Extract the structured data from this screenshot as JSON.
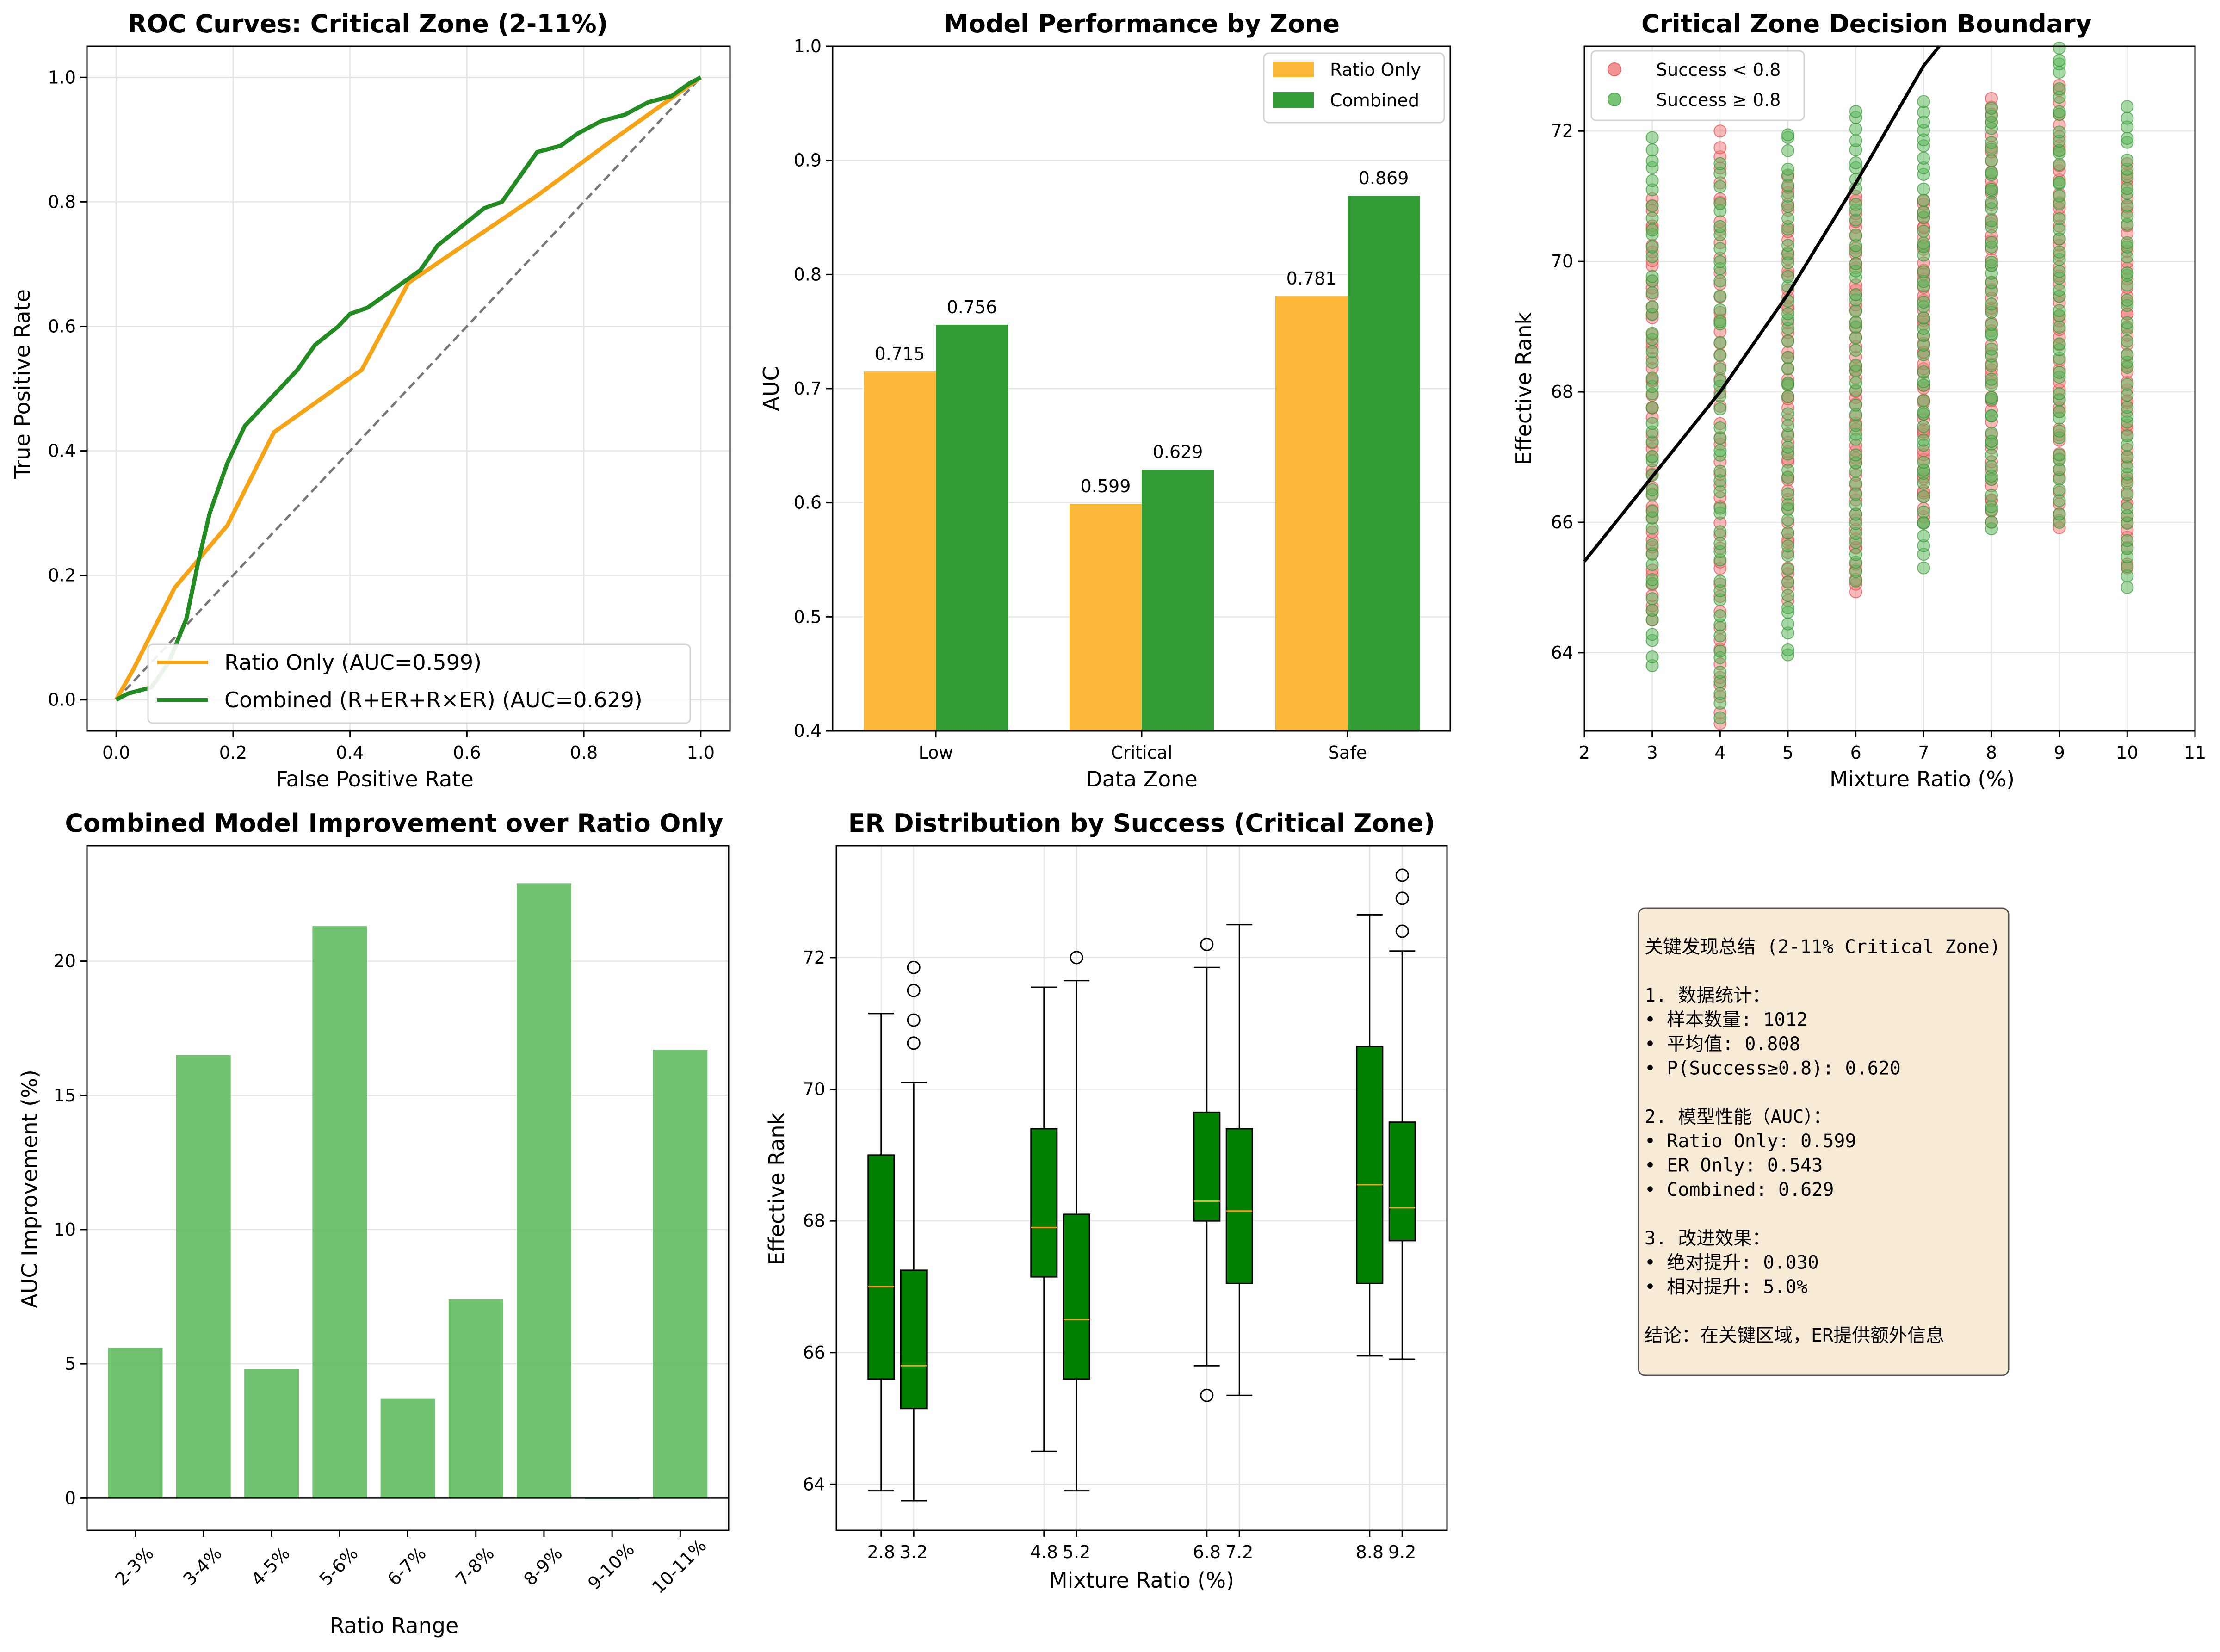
{
  "colors": {
    "orange": "#f5a418",
    "green": "#228b22",
    "bar_orange": "#fcb838",
    "bar_green": "#349c34",
    "red_point": "#f08080",
    "green_point": "#5fba5f",
    "box_green": "#008000",
    "median": "#f5a418",
    "info_bg": "#f7ebd5"
  },
  "chart_data": [
    {
      "type": "line",
      "title": "ROC Curves: Critical Zone (2-11%)",
      "xlabel": "False Positive Rate",
      "ylabel": "True Positive Rate",
      "xlim": [
        -0.05,
        1.05
      ],
      "ylim": [
        -0.05,
        1.05
      ],
      "xticks": [
        "0.0",
        "0.2",
        "0.4",
        "0.6",
        "0.8",
        "1.0"
      ],
      "yticks": [
        "0.0",
        "0.2",
        "0.4",
        "0.6",
        "0.8",
        "1.0"
      ],
      "grid": true,
      "legend_position": "lower-right",
      "series": [
        {
          "name": "Ratio Only (AUC=0.599)",
          "x": [
            0,
            0.03,
            0.1,
            0.19,
            0.27,
            0.42,
            0.5,
            0.72,
            0.85,
            1.0
          ],
          "y": [
            0,
            0.05,
            0.18,
            0.28,
            0.43,
            0.53,
            0.67,
            0.81,
            0.9,
            1.0
          ]
        },
        {
          "name": "Combined (R+ER+R×ER) (AUC=0.629)",
          "x": [
            0,
            0.02,
            0.06,
            0.09,
            0.12,
            0.14,
            0.16,
            0.19,
            0.22,
            0.25,
            0.29,
            0.31,
            0.34,
            0.38,
            0.4,
            0.43,
            0.46,
            0.49,
            0.52,
            0.55,
            0.59,
            0.63,
            0.66,
            0.69,
            0.72,
            0.76,
            0.79,
            0.83,
            0.87,
            0.91,
            0.95,
            0.98,
            1.0
          ],
          "y": [
            0,
            0.01,
            0.02,
            0.06,
            0.13,
            0.22,
            0.3,
            0.38,
            0.44,
            0.47,
            0.51,
            0.53,
            0.57,
            0.6,
            0.62,
            0.63,
            0.65,
            0.67,
            0.69,
            0.73,
            0.76,
            0.79,
            0.8,
            0.84,
            0.88,
            0.89,
            0.91,
            0.93,
            0.94,
            0.96,
            0.97,
            0.99,
            1.0
          ]
        },
        {
          "name": "",
          "x": [
            0,
            1
          ],
          "y": [
            0,
            1
          ]
        }
      ]
    },
    {
      "type": "bar",
      "title": "Model Performance by Zone",
      "xlabel": "Data Zone",
      "ylabel": "AUC",
      "ylim": [
        0.4,
        1.0
      ],
      "yticks": [
        "0.4",
        "0.5",
        "0.6",
        "0.7",
        "0.8",
        "0.9",
        "1.0"
      ],
      "categories": [
        "Low",
        "Critical",
        "Safe"
      ],
      "legend_position": "top-right",
      "series": [
        {
          "name": "Ratio Only",
          "values": [
            0.715,
            0.599,
            0.781
          ],
          "labels": [
            "0.715",
            "0.599",
            "0.781"
          ]
        },
        {
          "name": "Combined",
          "values": [
            0.756,
            0.629,
            0.869
          ],
          "labels": [
            "0.756",
            "0.629",
            "0.869"
          ]
        }
      ]
    },
    {
      "type": "scatter",
      "title": "Critical Zone Decision Boundary",
      "xlabel": "Mixture Ratio (%)",
      "ylabel": "Effective Rank",
      "xlim": [
        2,
        11
      ],
      "ylim": [
        62.8,
        73.3
      ],
      "xticks": [
        "2",
        "3",
        "4",
        "5",
        "6",
        "7",
        "8",
        "9",
        "10",
        "11"
      ],
      "yticks": [
        "64",
        "66",
        "68",
        "70",
        "72"
      ],
      "legend_position": "top-left",
      "series": [
        {
          "name": "Success < 0.8",
          "x_positions": [
            3,
            4,
            5,
            6,
            7,
            8,
            9,
            10
          ],
          "y_ranges": [
            [
              64.5,
              71.0
            ],
            [
              62.9,
              72.0
            ],
            [
              64.8,
              71.3
            ],
            [
              64.9,
              71.0
            ],
            [
              66.0,
              71.0
            ],
            [
              66.0,
              72.5
            ],
            [
              65.9,
              72.7
            ],
            [
              65.3,
              71.5
            ]
          ]
        },
        {
          "name": "Success ≥ 0.8",
          "x_positions": [
            3,
            4,
            5,
            6,
            7,
            8,
            9,
            10
          ],
          "y_ranges": [
            [
              63.8,
              71.9
            ],
            [
              63.0,
              71.5
            ],
            [
              63.9,
              72.0
            ],
            [
              65.1,
              72.3
            ],
            [
              65.3,
              72.5
            ],
            [
              65.9,
              72.4
            ],
            [
              66.0,
              73.3
            ],
            [
              65.0,
              72.4
            ]
          ]
        },
        {
          "name": "",
          "boundary_x": [
            2.0,
            3.0,
            4.0,
            5.0,
            6.0,
            7.0,
            7.23
          ],
          "boundary_y": [
            65.4,
            66.7,
            68.0,
            69.5,
            71.2,
            73.0,
            73.3
          ]
        }
      ]
    },
    {
      "type": "bar",
      "title": "Combined Model Improvement over Ratio Only",
      "xlabel": "Ratio Range",
      "ylabel": "AUC Improvement (%)",
      "ylim": [
        -1.2,
        24.3
      ],
      "yticks": [
        "0",
        "5",
        "10",
        "15",
        "20"
      ],
      "categories": [
        "2-3%",
        "3-4%",
        "4-5%",
        "5-6%",
        "6-7%",
        "7-8%",
        "8-9%",
        "9-10%",
        "10-11%"
      ],
      "values": [
        5.6,
        16.5,
        4.8,
        21.3,
        3.7,
        7.4,
        22.9,
        0.0,
        16.7
      ]
    },
    {
      "type": "box",
      "title": "ER Distribution by Success (Critical Zone)",
      "xlabel": "Mixture Ratio (%)",
      "ylabel": "Effective Rank",
      "ylim": [
        63.3,
        73.7
      ],
      "xlim": [
        2.25,
        9.75
      ],
      "xticks": [
        "2.8",
        "3.2",
        "4.8",
        "5.2",
        "6.8",
        "7.2",
        "8.8",
        "9.2"
      ],
      "yticks": [
        "64",
        "66",
        "68",
        "70",
        "72"
      ],
      "boxes": [
        {
          "x": 2.8,
          "whislo": 63.9,
          "q1": 65.6,
          "med": 67.0,
          "q3": 69.0,
          "whishi": 71.15,
          "fliers": []
        },
        {
          "x": 3.2,
          "whislo": 63.75,
          "q1": 65.15,
          "med": 65.8,
          "q3": 67.25,
          "whishi": 70.1,
          "fliers": [
            70.7,
            71.05,
            71.5,
            71.85
          ]
        },
        {
          "x": 4.8,
          "whislo": 64.5,
          "q1": 67.15,
          "med": 67.9,
          "q3": 69.4,
          "whishi": 71.55,
          "fliers": []
        },
        {
          "x": 5.2,
          "whislo": 63.9,
          "q1": 65.6,
          "med": 66.5,
          "q3": 68.1,
          "whishi": 71.65,
          "fliers": [
            72.0
          ]
        },
        {
          "x": 6.8,
          "whislo": 65.8,
          "q1": 68.0,
          "med": 68.3,
          "q3": 69.65,
          "whishi": 71.85,
          "fliers": [
            65.35,
            72.2
          ]
        },
        {
          "x": 7.2,
          "whislo": 65.35,
          "q1": 67.05,
          "med": 68.15,
          "q3": 69.4,
          "whishi": 72.5,
          "fliers": []
        },
        {
          "x": 8.8,
          "whislo": 65.95,
          "q1": 67.05,
          "med": 68.55,
          "q3": 70.65,
          "whishi": 72.65,
          "fliers": []
        },
        {
          "x": 9.2,
          "whislo": 65.9,
          "q1": 67.7,
          "med": 68.2,
          "q3": 69.5,
          "whishi": 72.1,
          "fliers": [
            72.4,
            72.9,
            73.25
          ]
        }
      ]
    }
  ],
  "info_box": {
    "lines": [
      "关键发现总结 (2-11% Critical Zone)",
      "",
      "1. 数据统计：",
      "   • 样本数量: 1012",
      "   • 平均值: 0.808",
      "   • P(Success≥0.8): 0.620",
      "",
      "2. 模型性能（AUC）：",
      "   • Ratio Only: 0.599",
      "   • ER Only: 0.543",
      "   • Combined: 0.629",
      "",
      "3. 改进效果：",
      "   • 绝对提升: 0.030",
      "   • 相对提升: 5.0%",
      "",
      "结论：在关键区域，ER提供额外信息"
    ]
  }
}
